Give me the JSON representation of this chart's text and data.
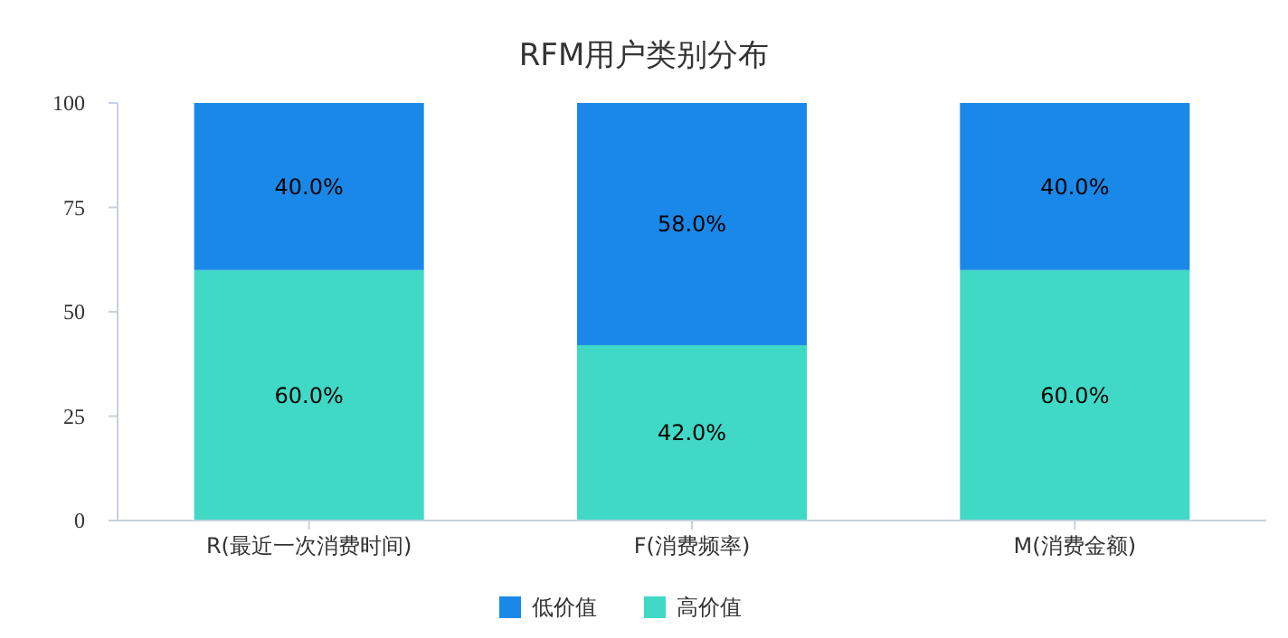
{
  "chart_data": {
    "type": "bar",
    "title": "RFM用户类别分布",
    "stacked": true,
    "categories": [
      "R(最近一次消费时间)",
      "F(消费频率)",
      "M(消费金额)"
    ],
    "series": [
      {
        "name": "高价值",
        "color": "#40d9c6",
        "values": [
          60,
          42,
          60
        ],
        "value_labels": [
          "60.0%",
          "42.0%",
          "60.0%"
        ]
      },
      {
        "name": "低价值",
        "color": "#1a88e8",
        "values": [
          40,
          58,
          40
        ],
        "value_labels": [
          "40.0%",
          "58.0%",
          "40.0%"
        ]
      }
    ],
    "ylim": [
      0,
      100
    ],
    "yticks": [
      0,
      25,
      50,
      75,
      100
    ],
    "grid": false,
    "legend": "bottom"
  }
}
